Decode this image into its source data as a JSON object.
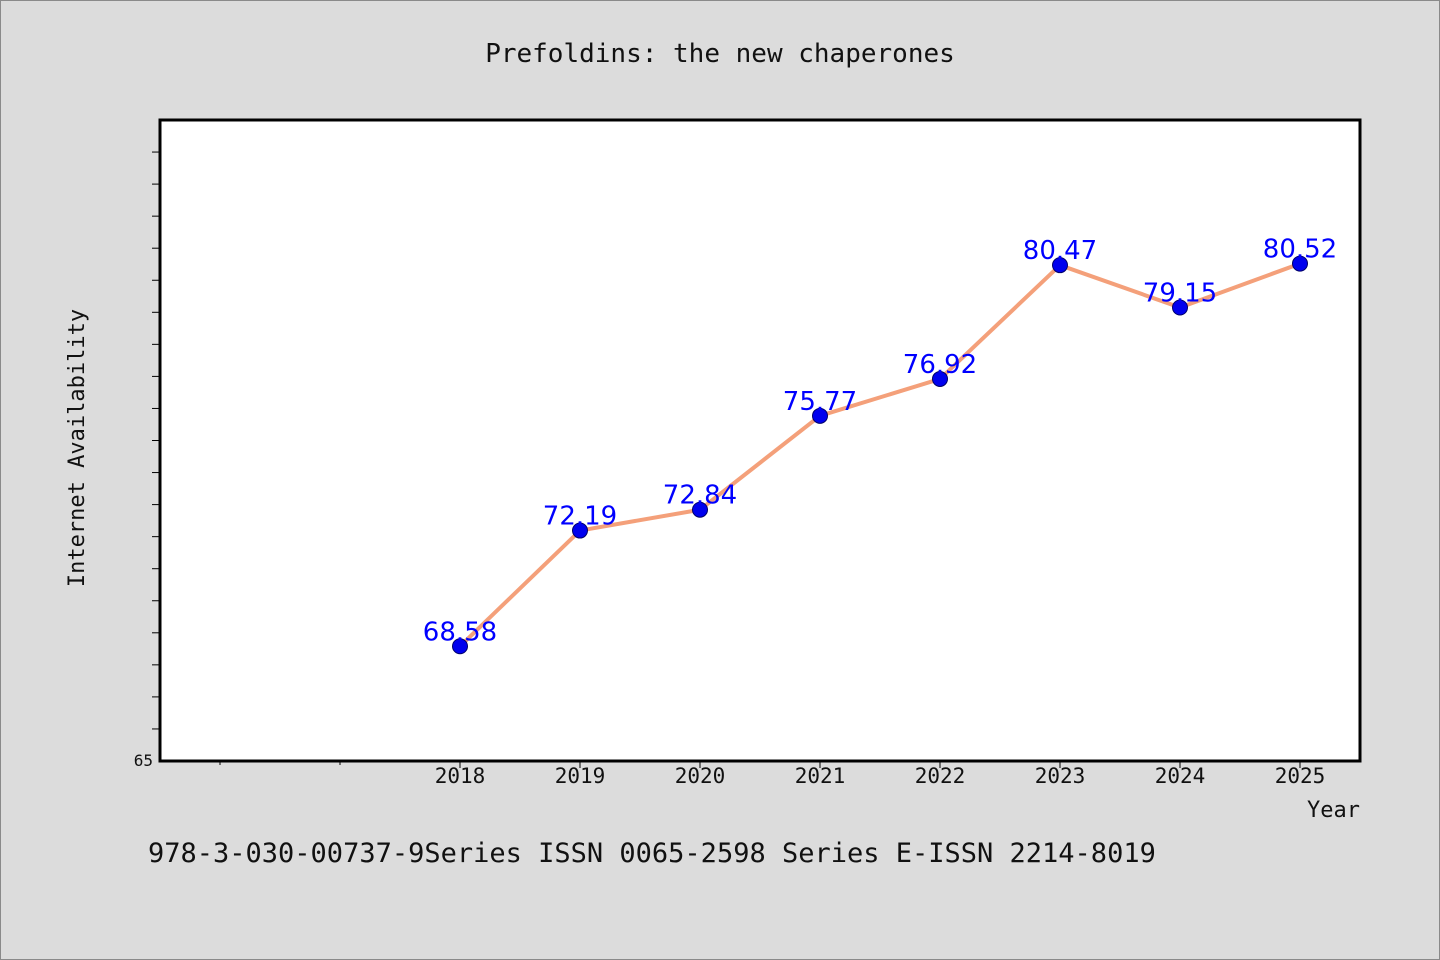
{
  "chart_data": {
    "type": "line",
    "title": "Prefoldins: the new chaperones",
    "xlabel": "Year",
    "ylabel": "Internet Availability",
    "footnote": "978-3-030-00737-9Series ISSN 0065-2598 Series E-ISSN 2214-8019",
    "categories": [
      "2018",
      "2019",
      "2020",
      "2021",
      "2022",
      "2023",
      "2024",
      "2025"
    ],
    "series": [
      {
        "values": [
          68.58,
          72.19,
          72.84,
          75.77,
          76.92,
          80.47,
          79.15,
          80.52
        ],
        "value_labels": [
          "68.58",
          "72.19",
          "72.84",
          "75.77",
          "76.92",
          "80.47",
          "79.15",
          "80.52"
        ]
      }
    ],
    "ylim": [
      65,
      85
    ],
    "ytick_labels": [
      "65"
    ],
    "grid": false,
    "colors": {
      "line": "#f4a07a",
      "marker": "#0000ee",
      "label": "#0000ff",
      "background": "#dcdcdc",
      "plot_background": "#ffffff"
    }
  }
}
